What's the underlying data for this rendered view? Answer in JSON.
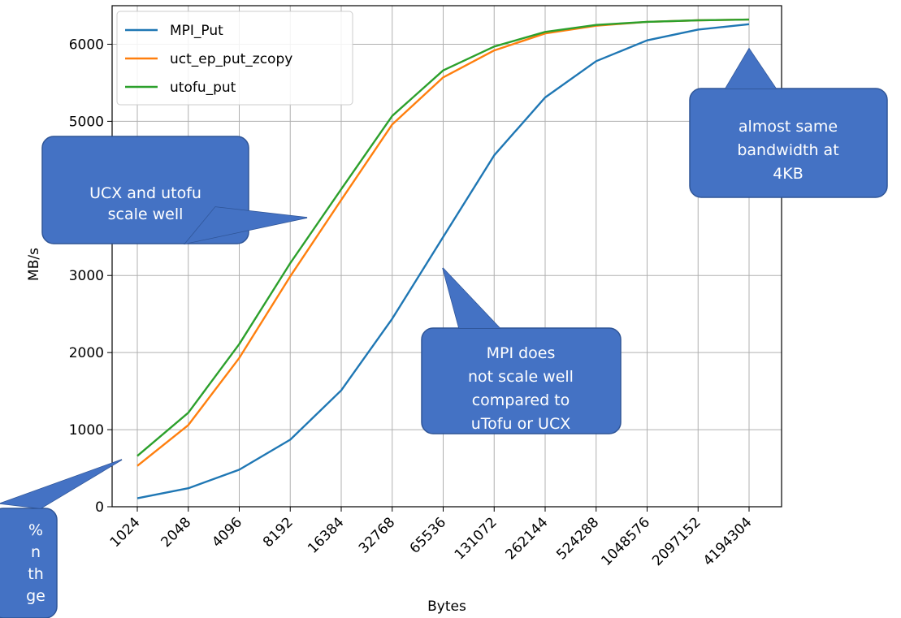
{
  "chart_data": {
    "type": "line",
    "xlabel": "Bytes",
    "ylabel": "MB/s",
    "categories": [
      "1024",
      "2048",
      "4096",
      "8192",
      "16384",
      "32768",
      "65536",
      "131072",
      "262144",
      "524288",
      "1048576",
      "2097152",
      "4194304"
    ],
    "ylim": [
      0,
      6500
    ],
    "yticks": [
      0,
      1000,
      2000,
      3000,
      5000,
      6000
    ],
    "grid": true,
    "legend_position": "top-left",
    "series": [
      {
        "name": "MPI_Put",
        "color": "#1f77b4",
        "values": [
          110,
          240,
          480,
          870,
          1510,
          2440,
          3500,
          4560,
          5310,
          5780,
          6050,
          6190,
          6260
        ]
      },
      {
        "name": "uct_ep_put_zcopy",
        "color": "#ff7f0e",
        "values": [
          530,
          1060,
          1930,
          2990,
          3980,
          4960,
          5570,
          5920,
          6140,
          6240,
          6290,
          6310,
          6320
        ]
      },
      {
        "name": "utofu_put",
        "color": "#2ca02c",
        "values": [
          660,
          1220,
          2110,
          3160,
          4120,
          5070,
          5660,
          5970,
          6160,
          6250,
          6290,
          6310,
          6320
        ]
      }
    ],
    "annotations": [
      {
        "id": "ucx",
        "lines": [
          "UCX and utofu",
          "scale well"
        ]
      },
      {
        "id": "same",
        "lines": [
          "almost same",
          "bandwidth at",
          "4KB"
        ]
      },
      {
        "id": "mpi",
        "lines": [
          "MPI does",
          "not scale well",
          "compared to",
          "uTofu or UCX"
        ]
      },
      {
        "id": "bottomleft",
        "lines": [
          "%",
          "n",
          "th",
          "ge"
        ]
      }
    ],
    "callout_color": "#4472c4",
    "callout_border": "#2f5597"
  }
}
